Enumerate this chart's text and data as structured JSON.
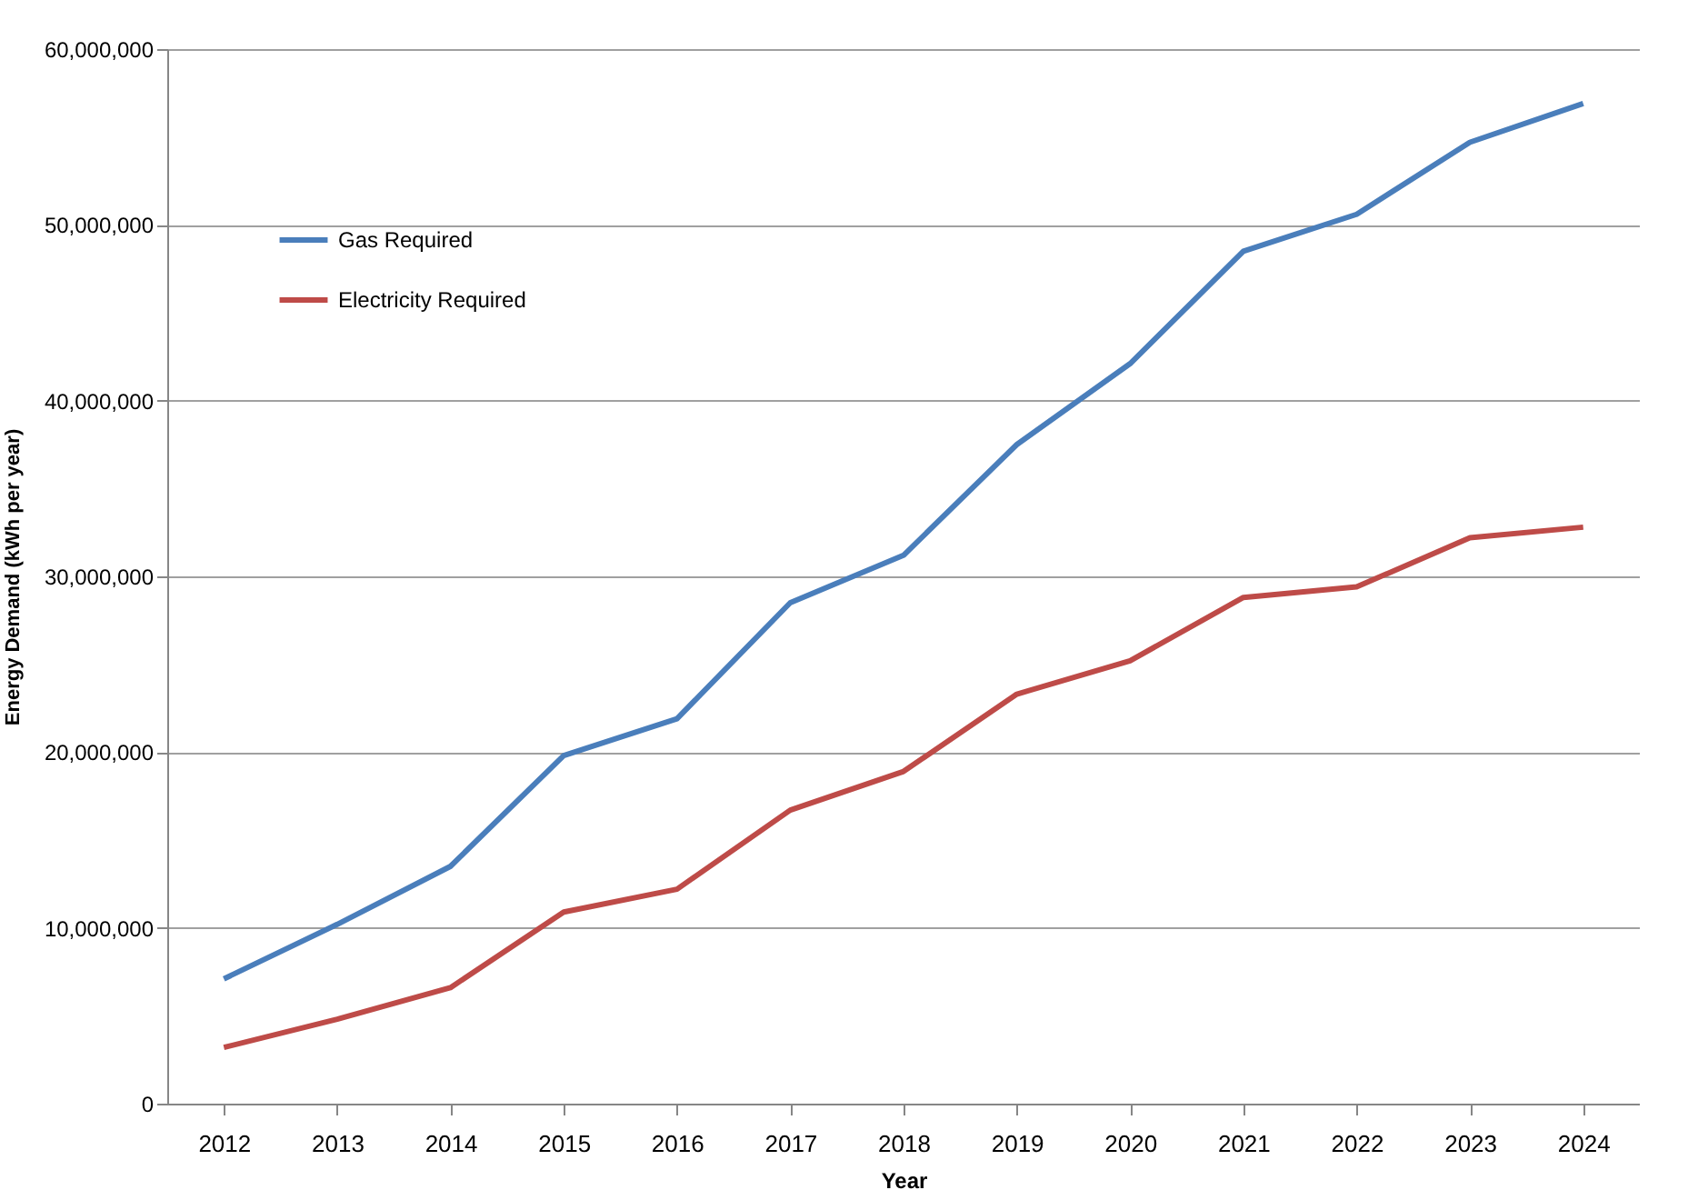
{
  "chart_data": {
    "type": "line",
    "xlabel": "Year",
    "ylabel": "Energy Demand (kWh per year)",
    "categories": [
      "2012",
      "2013",
      "2014",
      "2015",
      "2016",
      "2017",
      "2018",
      "2019",
      "2020",
      "2021",
      "2022",
      "2023",
      "2024"
    ],
    "series": [
      {
        "name": "Gas Required",
        "color": "#4a7ebb",
        "values": [
          7100000,
          10200000,
          13500000,
          19800000,
          21900000,
          28500000,
          31200000,
          37500000,
          42100000,
          48500000,
          50600000,
          54700000,
          56900000
        ]
      },
      {
        "name": "Electricity Required",
        "color": "#be4b48",
        "values": [
          3200000,
          4800000,
          6600000,
          10900000,
          12200000,
          16700000,
          18900000,
          23300000,
          25200000,
          28800000,
          29400000,
          32200000,
          32800000
        ]
      }
    ],
    "ylim": [
      0,
      60000000
    ],
    "yticks": [
      0,
      {
        "value": 10000000,
        "label": "10,000,000"
      },
      {
        "value": 20000000,
        "label": "20,000,000"
      },
      {
        "value": 30000000,
        "label": "30,000,000"
      },
      {
        "value": 40000000,
        "label": "40,000,000"
      },
      {
        "value": 50000000,
        "label": "50,000,000"
      },
      {
        "value": 60000000,
        "label": "60,000,000"
      }
    ],
    "grid": "y",
    "legend": "top left",
    "marker": "none",
    "line_style": "solid"
  }
}
